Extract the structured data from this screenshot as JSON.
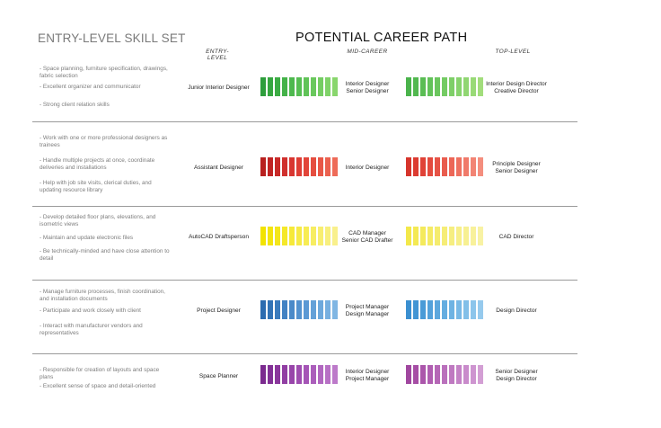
{
  "headings": {
    "left": "ENTRY-LEVEL SKILL SET",
    "center": "POTENTIAL CAREER PATH"
  },
  "columns": {
    "entry": "ENTRY-LEVEL",
    "mid": "MID-CAREER",
    "top": "TOP-LEVEL"
  },
  "rows": [
    {
      "skills": [
        "- Space planning, furniture specification, drawings, fabric selection",
        "- Excellent organizer and communicator",
        "- Strong client relation skills"
      ],
      "entry": "Junior Interior Designer",
      "mid": [
        "Interior Designer",
        "Senior Designer"
      ],
      "top": [
        "Interior Design Director",
        "Creative Director"
      ],
      "colors": [
        "#2e9e3c",
        "#36a640",
        "#3cac44",
        "#44b249",
        "#4db84e",
        "#56be53",
        "#60c358",
        "#6ac85d",
        "#74cd62",
        "#7fd268",
        "#89d66d"
      ],
      "colors_top": [
        "#4ab34b",
        "#52b850",
        "#5abd54",
        "#62c259",
        "#6bc65e",
        "#74cb63",
        "#7ecf68",
        "#87d36d",
        "#90d672",
        "#99da77",
        "#a2dd7c"
      ]
    },
    {
      "skills": [
        "- Work with one or more professional designers as trainees",
        "- Handle multiple projects at once, coordinate deliveries and installations",
        "- Help with job site visits, clerical duties, and updating resource library"
      ],
      "entry": "Assistant Designer",
      "mid": [
        "Interior Designer"
      ],
      "top": [
        "Principle Designer",
        "Senior Designer"
      ],
      "colors": [
        "#b8201f",
        "#c02424",
        "#c82a28",
        "#d0302d",
        "#d83631",
        "#de3d35",
        "#e2453a",
        "#e54e40",
        "#e85747",
        "#eb614f",
        "#ee6b58"
      ],
      "colors_top": [
        "#d6352c",
        "#dc3b31",
        "#e04237",
        "#e34a3e",
        "#e65346",
        "#e95c4e",
        "#ec6657",
        "#ee7060",
        "#f07a6a",
        "#f28474",
        "#f48e7e"
      ]
    },
    {
      "skills": [
        "- Develop detailed floor plans, elevations, and isometric views",
        "- Maintain and update electronic files",
        "- Be technically-minded and have close attention to detail"
      ],
      "entry": "AutoCAD Draftsperson",
      "mid": [
        "CAD Manager",
        "Senior CAD Drafter"
      ],
      "top": [
        "CAD Director"
      ],
      "colors": [
        "#f2e300",
        "#f3e50e",
        "#f4e61c",
        "#f5e82a",
        "#f6e938",
        "#f6ea46",
        "#f7ec54",
        "#f7ed62",
        "#f8ee70",
        "#f8ef7e",
        "#f9f08c"
      ],
      "colors_top": [
        "#f3e84a",
        "#f4e953",
        "#f4ea5c",
        "#f5eb65",
        "#f5ec6e",
        "#f6ed77",
        "#f6ee80",
        "#f7ef89",
        "#f7f092",
        "#f8f19b",
        "#f8f2a4"
      ]
    },
    {
      "skills": [
        "- Manage furniture processes, finish coordination, and installation documents",
        "- Participate and work closely with client",
        "- Interact with manufacturer vendors and representatives"
      ],
      "entry": "Project Designer",
      "mid": [
        "Project Manager",
        "Design Manager"
      ],
      "top": [
        "Design Director"
      ],
      "colors": [
        "#2c6cb0",
        "#3273b6",
        "#3a7bbd",
        "#4282c3",
        "#4a8ac9",
        "#5392cf",
        "#5b99d4",
        "#64a1d8",
        "#6da8dc",
        "#76afe0",
        "#80b6e3"
      ],
      "colors_top": [
        "#3a8fd0",
        "#4295d4",
        "#4a9bd7",
        "#53a1da",
        "#5ca7dd",
        "#65ade0",
        "#6eb3e3",
        "#78b9e6",
        "#82bfe8",
        "#8cc5eb",
        "#96caed"
      ]
    },
    {
      "skills": [
        "- Responsible for creation of layouts and space plans",
        "- Excellent sense of space and detail-oriented"
      ],
      "entry": "Space Planner",
      "mid": [
        "Interior Designer",
        "Project Manager"
      ],
      "top": [
        "Senior Designer",
        "Design Director"
      ],
      "colors": [
        "#7b2b8f",
        "#823196",
        "#8a379c",
        "#913ea3",
        "#9845aa",
        "#9f4db0",
        "#a555b6",
        "#ab5ebb",
        "#b167c0",
        "#b770c5",
        "#bd7aca"
      ],
      "colors_top": [
        "#a0479f",
        "#a64ea5",
        "#ab56ab",
        "#b05eb1",
        "#b567b6",
        "#ba70bc",
        "#bf79c1",
        "#c482c6",
        "#c98bcb",
        "#ce95d0",
        "#d39fd4"
      ]
    }
  ]
}
